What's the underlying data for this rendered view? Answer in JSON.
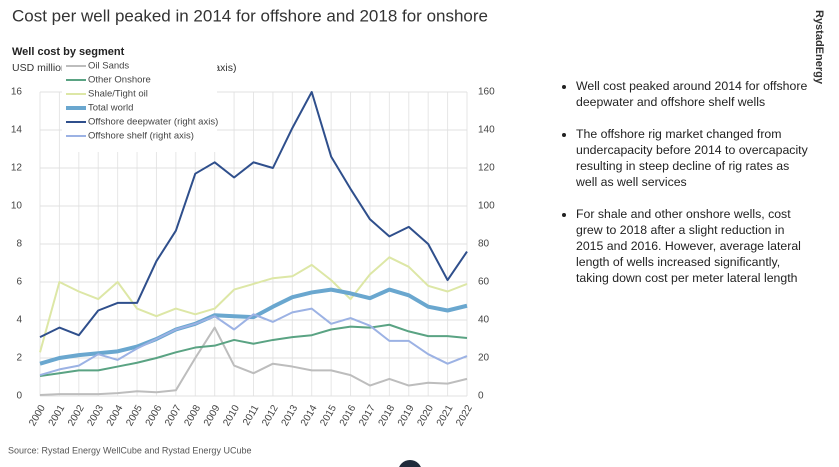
{
  "title": "Cost per well peaked in 2014 for offshore and 2018 for onshore",
  "logo": "RystadEnergy",
  "source": "Source: Rystad Energy WellCube and Rystad Energy UCube",
  "bullets": [
    "Well cost peaked around 2014 for offshore deepwater and offshore shelf wells",
    "The offshore rig market changed from undercapacity before 2014 to overcapacity resulting in steep decline of rig rates as well as well services",
    "For shale and other onshore wells, cost grew to 2018 after a slight reduction in 2015 and 2016. However, average lateral length of wells increased significantly, taking down cost per meter lateral length"
  ],
  "chart_data": {
    "type": "line",
    "title": "Well cost by segment",
    "subtitle": "USD million per well (offshore wells at right axis)",
    "categories": [
      "2000",
      "2001",
      "2002",
      "2003",
      "2004",
      "2005",
      "2006",
      "2007",
      "2008",
      "2009",
      "2010",
      "2011",
      "2012",
      "2013",
      "2014",
      "2015",
      "2016",
      "2017",
      "2018",
      "2019",
      "2020",
      "2021",
      "2022"
    ],
    "ylim": [
      0,
      16
    ],
    "yticks": [
      0,
      2,
      4,
      6,
      8,
      10,
      12,
      14,
      16
    ],
    "y2lim": [
      0,
      160
    ],
    "y2ticks": [
      0,
      20,
      40,
      60,
      80,
      100,
      120,
      140,
      160
    ],
    "grid": true,
    "legend": "upper left",
    "series": [
      {
        "name": "Oil Sands",
        "color": "#bdbdbd",
        "width": 2,
        "values": [
          0.05,
          0.1,
          0.1,
          0.1,
          0.15,
          0.25,
          0.2,
          0.3,
          2.0,
          3.6,
          1.6,
          1.2,
          1.7,
          1.55,
          1.35,
          1.35,
          1.1,
          0.55,
          0.9,
          0.55,
          0.7,
          0.65,
          0.9
        ]
      },
      {
        "name": "Other Onshore",
        "color": "#5aa383",
        "width": 2,
        "values": [
          1.05,
          1.2,
          1.35,
          1.35,
          1.55,
          1.75,
          2.0,
          2.3,
          2.55,
          2.65,
          2.95,
          2.75,
          2.95,
          3.1,
          3.2,
          3.5,
          3.65,
          3.6,
          3.75,
          3.4,
          3.15,
          3.15,
          3.05
        ]
      },
      {
        "name": "Shale/Tight oil",
        "color": "#dde7a6",
        "width": 2,
        "values": [
          2.3,
          6.0,
          5.5,
          5.1,
          6.0,
          4.6,
          4.2,
          4.6,
          4.3,
          4.6,
          5.6,
          5.9,
          6.2,
          6.3,
          6.9,
          6.1,
          5.1,
          6.4,
          7.3,
          6.8,
          5.8,
          5.5,
          5.9
        ]
      },
      {
        "name": "Total world",
        "color": "#6aa7cf",
        "width": 4,
        "values": [
          1.7,
          2.0,
          2.15,
          2.25,
          2.35,
          2.6,
          3.0,
          3.5,
          3.8,
          4.25,
          4.2,
          4.15,
          4.7,
          5.2,
          5.45,
          5.6,
          5.4,
          5.15,
          5.6,
          5.3,
          4.7,
          4.5,
          4.75
        ]
      },
      {
        "name": "Offshore deepwater (right axis)",
        "color": "#2f4f8c",
        "width": 2,
        "axis": "y2",
        "values": [
          31,
          36,
          32,
          45,
          49,
          49,
          71,
          87,
          117,
          123,
          115,
          123,
          120,
          141,
          160,
          126,
          109,
          93,
          84,
          89,
          80,
          61,
          76
        ]
      },
      {
        "name": "Offshore shelf (right axis)",
        "color": "#9cb2e4",
        "width": 2,
        "axis": "y2",
        "values": [
          11,
          14,
          16,
          22,
          19,
          25,
          30,
          35,
          38,
          42,
          35,
          43,
          39,
          44,
          46,
          38,
          41,
          37,
          29,
          29,
          22,
          17,
          21
        ]
      }
    ]
  }
}
